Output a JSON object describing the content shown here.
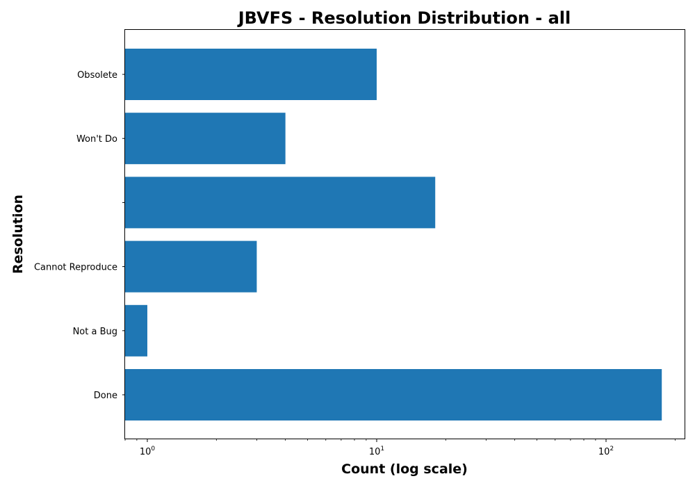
{
  "chart_data": {
    "type": "bar",
    "orientation": "horizontal",
    "title": "JBVFS - Resolution Distribution - all",
    "xlabel": "Count (log scale)",
    "ylabel": "Resolution",
    "x_scale": "log",
    "xlim": [
      0.8,
      220
    ],
    "categories": [
      "Done",
      "Not a Bug",
      "Cannot Reproduce",
      "",
      "Won't Do",
      "Obsolete"
    ],
    "values": [
      175,
      1,
      3,
      18,
      4,
      10
    ],
    "x_ticks": [
      {
        "value": 1,
        "base": "10",
        "exponent": "0"
      },
      {
        "value": 10,
        "base": "10",
        "exponent": "1"
      },
      {
        "value": 100,
        "base": "10",
        "exponent": "2"
      }
    ],
    "bar_color": "#1f77b4",
    "grid": false,
    "legend": false
  }
}
